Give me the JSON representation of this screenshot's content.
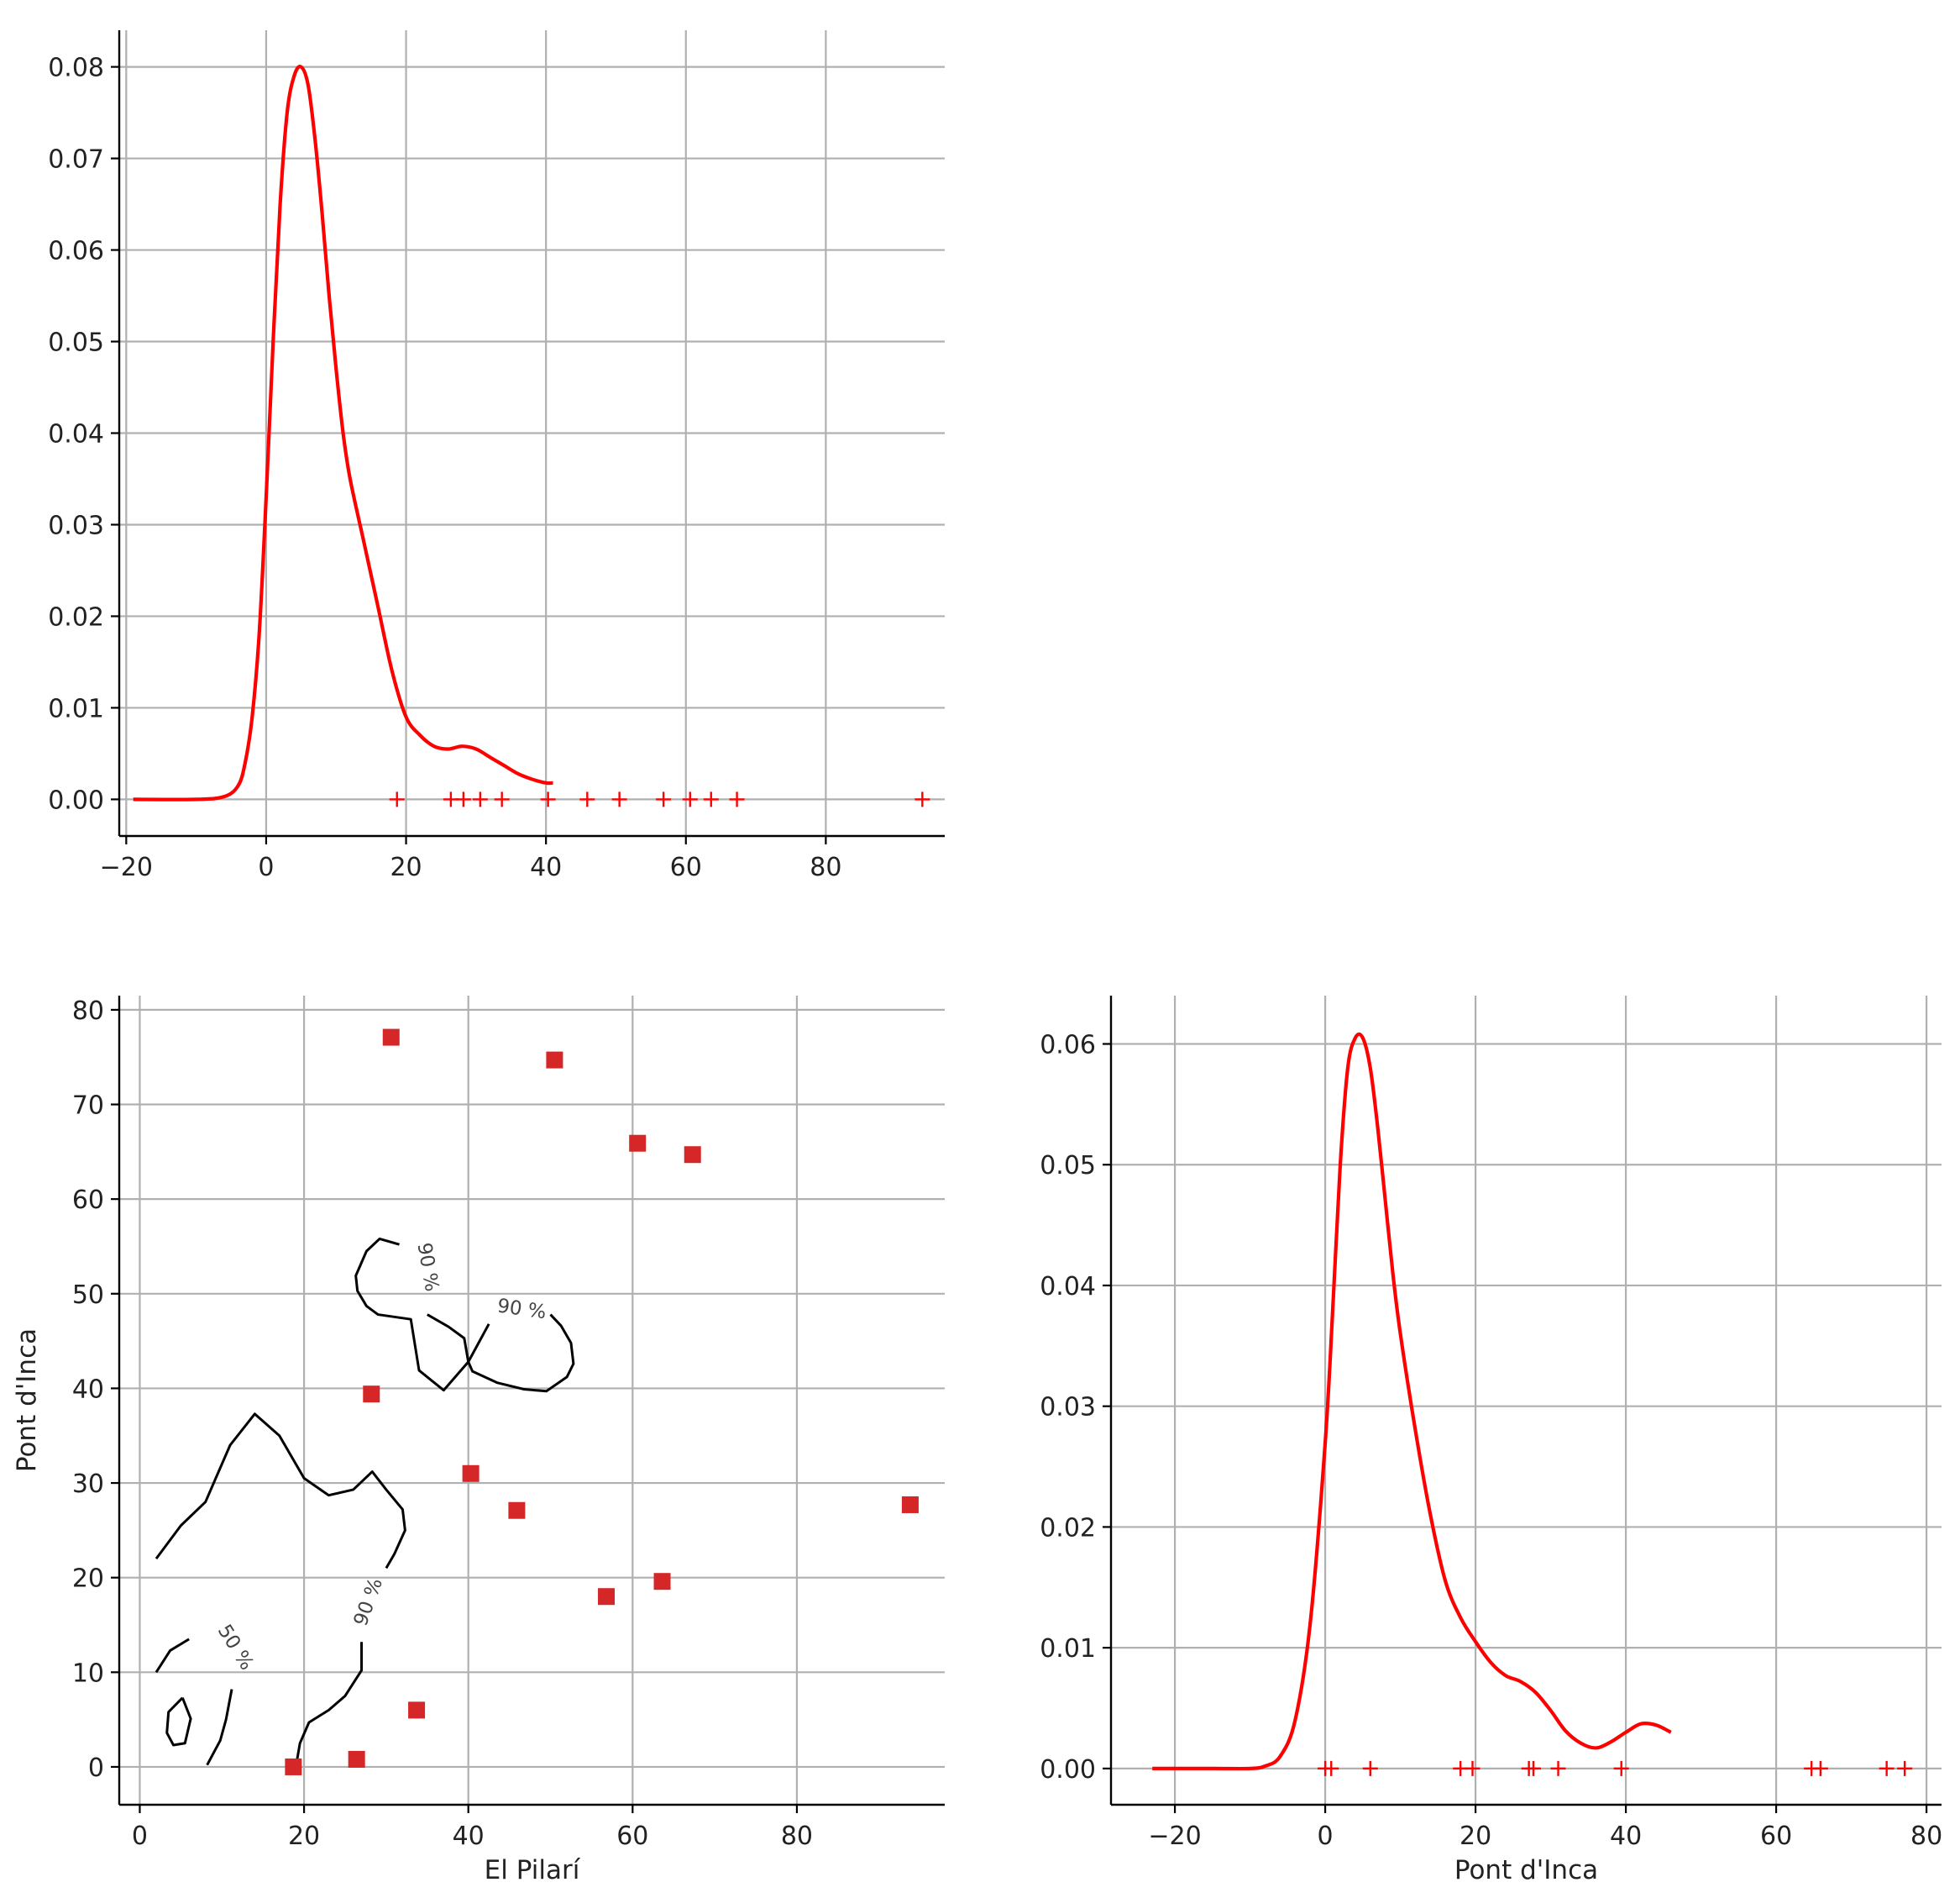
{
  "chart_data": [
    {
      "id": "kde-el-pilari",
      "type": "line",
      "title": "",
      "xlabel": "",
      "ylabel": "",
      "xlim": [
        -21,
        97
      ],
      "ylim": [
        -0.004,
        0.084
      ],
      "xticks": [
        -20,
        0,
        20,
        40,
        60,
        80
      ],
      "xtick_labels": [
        "−20",
        "0",
        "20",
        "40",
        "60",
        "80"
      ],
      "yticks": [
        0.0,
        0.01,
        0.02,
        0.03,
        0.04,
        0.05,
        0.06,
        0.07,
        0.08
      ],
      "ytick_labels": [
        "0.00",
        "0.01",
        "0.02",
        "0.03",
        "0.04",
        "0.05",
        "0.06",
        "0.07",
        "0.08"
      ],
      "grid": true,
      "series": [
        {
          "kind": "density",
          "color": "#ff0000",
          "x": [
            -19,
            -10,
            -6,
            -4,
            -3,
            -2,
            -1,
            0,
            1,
            2,
            3,
            4,
            5,
            6,
            7,
            8,
            9,
            10,
            11,
            12,
            14,
            16,
            18,
            20,
            22,
            24,
            26,
            28,
            30,
            32,
            34,
            36,
            38,
            40,
            41
          ],
          "y": [
            0.0,
            0.0,
            0.0003,
            0.0015,
            0.004,
            0.009,
            0.018,
            0.033,
            0.05,
            0.065,
            0.075,
            0.079,
            0.08,
            0.078,
            0.072,
            0.064,
            0.055,
            0.047,
            0.04,
            0.035,
            0.028,
            0.021,
            0.014,
            0.009,
            0.007,
            0.0058,
            0.0055,
            0.0058,
            0.0055,
            0.0046,
            0.0037,
            0.0028,
            0.0022,
            0.0018,
            0.0018
          ]
        },
        {
          "kind": "rug",
          "color": "#ff0000",
          "marker": "+",
          "x": [
            18.7,
            26.4,
            28.2,
            30.6,
            33.7,
            40.3,
            45.9,
            50.5,
            56.8,
            60.6,
            63.6,
            67.3,
            93.8
          ],
          "y_level": 0.0
        }
      ]
    },
    {
      "id": "bivariate-contour",
      "type": "scatter",
      "title": "",
      "xlabel": "El Pilarí",
      "ylabel": "Pont d'Inca",
      "xlim": [
        -2.5,
        98
      ],
      "ylim": [
        -4,
        81.5
      ],
      "xticks": [
        0,
        20,
        40,
        60,
        80
      ],
      "xtick_labels": [
        "0",
        "20",
        "40",
        "60",
        "80"
      ],
      "yticks": [
        0,
        10,
        20,
        30,
        40,
        50,
        60,
        70,
        80
      ],
      "ytick_labels": [
        "0",
        "10",
        "20",
        "30",
        "40",
        "50",
        "60",
        "70",
        "80"
      ],
      "grid": true,
      "points": {
        "color": "#d62728",
        "marker": "square",
        "x": [
          30.6,
          50.5,
          60.6,
          67.3,
          28.2,
          40.3,
          45.9,
          93.8,
          56.8,
          63.6,
          33.7,
          26.4,
          18.7
        ],
        "y": [
          77.1,
          74.7,
          65.9,
          64.7,
          39.4,
          31.0,
          27.1,
          27.7,
          18.0,
          19.6,
          6.0,
          0.8,
          0.0
        ]
      },
      "contours": [
        {
          "level": "90 %",
          "color": "#000000",
          "paths": [
            [
              [
                2,
                22
              ],
              [
                5,
                25.5
              ],
              [
                8,
                28
              ],
              [
                11,
                34
              ],
              [
                14,
                37.3
              ],
              [
                17,
                35
              ],
              [
                20,
                30.5
              ],
              [
                23,
                28.7
              ],
              [
                26,
                29.3
              ],
              [
                28.3,
                31.2
              ],
              [
                30,
                29.3
              ],
              [
                32,
                27.2
              ],
              [
                32.3,
                25
              ],
              [
                31,
                22.5
              ],
              [
                30,
                21
              ]
            ],
            [
              [
                27,
                13.2
              ],
              [
                27,
                10.2
              ],
              [
                25,
                7.5
              ],
              [
                23,
                6
              ],
              [
                20.6,
                4.7
              ],
              [
                19.5,
                2.5
              ],
              [
                19,
                0
              ]
            ],
            [
              [
                31.6,
                55.2
              ],
              [
                29.2,
                55.8
              ],
              [
                27.6,
                54.5
              ],
              [
                26.3,
                51.9
              ],
              [
                26.5,
                50.3
              ],
              [
                27.6,
                48.7
              ],
              [
                29,
                47.8
              ],
              [
                33,
                47.3
              ],
              [
                34,
                41.9
              ],
              [
                37,
                39.8
              ],
              [
                40,
                42.8
              ],
              [
                42.5,
                46.8
              ]
            ],
            [
              [
                35,
                47.8
              ],
              [
                37.6,
                46.5
              ],
              [
                39.5,
                45.3
              ],
              [
                40,
                42.8
              ],
              [
                40.5,
                41.8
              ],
              [
                43.5,
                40.6
              ],
              [
                46.8,
                39.9
              ],
              [
                49.5,
                39.7
              ],
              [
                52,
                41.2
              ],
              [
                52.8,
                42.6
              ],
              [
                52.5,
                44.8
              ],
              [
                51.3,
                46.6
              ],
              [
                50,
                47.8
              ]
            ]
          ],
          "labels": [
            {
              "text": "90 %",
              "x": 27.9,
              "y": 17.4,
              "angle": -70
            },
            {
              "text": "90 %",
              "x": 35,
              "y": 52.8,
              "angle": 80
            },
            {
              "text": "90 %",
              "x": 46.5,
              "y": 48.3,
              "angle": 8
            }
          ]
        },
        {
          "level": "50 %",
          "color": "#000000",
          "paths": [
            [
              [
                2,
                10
              ],
              [
                3.7,
                12.3
              ],
              [
                6,
                13.5
              ]
            ],
            [
              [
                11.2,
                8.2
              ],
              [
                10.5,
                5
              ],
              [
                9.8,
                2.8
              ],
              [
                8.2,
                0.2
              ]
            ],
            [
              [
                5.2,
                7.3
              ],
              [
                6.2,
                5.1
              ],
              [
                5.5,
                2.5
              ],
              [
                4.1,
                2.3
              ],
              [
                3.3,
                3.6
              ],
              [
                3.5,
                5.8
              ],
              [
                5.2,
                7.3
              ]
            ]
          ],
          "labels": [
            {
              "text": "50 %",
              "x": 11.6,
              "y": 12.6,
              "angle": 58
            }
          ]
        }
      ]
    },
    {
      "id": "kde-pont-dinca",
      "type": "line",
      "title": "",
      "xlabel": "Pont d'Inca",
      "ylabel": "",
      "xlim": [
        -28.5,
        82
      ],
      "ylim": [
        -0.003,
        0.064
      ],
      "xticks": [
        -20,
        0,
        20,
        40,
        60,
        80
      ],
      "xtick_labels": [
        "−20",
        "0",
        "20",
        "40",
        "60",
        "80"
      ],
      "yticks": [
        0.0,
        0.01,
        0.02,
        0.03,
        0.04,
        0.05,
        0.06
      ],
      "ytick_labels": [
        "0.00",
        "0.01",
        "0.02",
        "0.03",
        "0.04",
        "0.05",
        "0.06"
      ],
      "grid": true,
      "series": [
        {
          "kind": "density",
          "color": "#ff0000",
          "x": [
            -23,
            -15,
            -10,
            -8,
            -6,
            -4,
            -2,
            0,
            1,
            2,
            3,
            4,
            5,
            6,
            7,
            8,
            9,
            10,
            12,
            14,
            16,
            18,
            20,
            22,
            24,
            26,
            28,
            30,
            32,
            34,
            36,
            38,
            40,
            42,
            44,
            46
          ],
          "y": [
            0.0,
            0.0,
            0.0,
            0.0002,
            0.001,
            0.004,
            0.012,
            0.027,
            0.038,
            0.05,
            0.058,
            0.0605,
            0.0605,
            0.058,
            0.053,
            0.047,
            0.041,
            0.036,
            0.028,
            0.021,
            0.0155,
            0.0125,
            0.0105,
            0.0088,
            0.0077,
            0.0072,
            0.0063,
            0.0048,
            0.0031,
            0.0021,
            0.0017,
            0.0022,
            0.003,
            0.0037,
            0.0036,
            0.003
          ]
        },
        {
          "kind": "rug",
          "color": "#ff0000",
          "marker": "+",
          "x": [
            0.0,
            0.8,
            6.0,
            18.0,
            19.6,
            27.1,
            27.7,
            31.0,
            39.4,
            64.7,
            65.9,
            74.7,
            77.1
          ],
          "y_level": 0.0
        }
      ]
    }
  ]
}
